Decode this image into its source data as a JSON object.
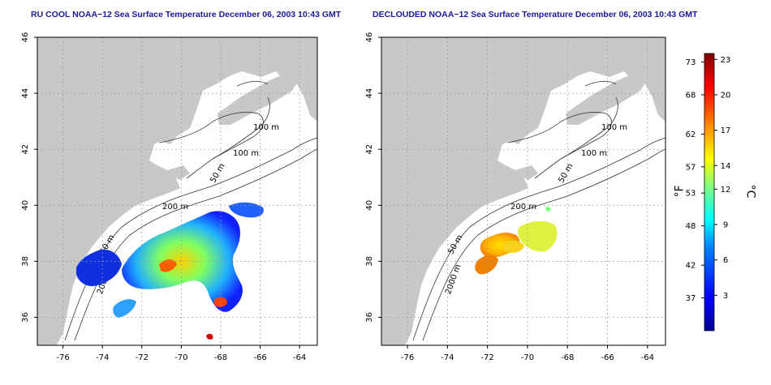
{
  "titles": {
    "left": "RU COOL NOAA−12 Sea Surface Temperature December 06, 2003 10:43 GMT",
    "right": "DECLOUDED NOAA−12 Sea Surface Temperature December 06, 2003 10:43 GMT"
  },
  "map_axes": {
    "lon_ticks": [
      "-76",
      "-74",
      "-72",
      "-70",
      "-68",
      "-66",
      "-64"
    ],
    "lat_ticks": [
      "36",
      "38",
      "40",
      "42",
      "44",
      "46"
    ],
    "lon_range": [
      -77.3,
      -63.1
    ],
    "lat_range": [
      35.0,
      46.0
    ]
  },
  "contours_left": [
    "100 m",
    "100 m",
    "50 m",
    "200 m",
    "50 m",
    "200 m"
  ],
  "contours_right": [
    "100 m",
    "100 m",
    "50 m",
    "200 m",
    "50 m",
    "2000 m"
  ],
  "colorbar": {
    "fahrenheit_ticks": [
      "73",
      "68",
      "62",
      "57",
      "53",
      "48",
      "42",
      "37"
    ],
    "celsius_ticks": [
      "23",
      "20",
      "17",
      "14",
      "12",
      "9",
      "6",
      "3"
    ],
    "fahrenheit_unit": "°F",
    "celsius_unit": "°C",
    "range_c": [
      0,
      23.5
    ],
    "colors": [
      "#00008f",
      "#0000ff",
      "#0080ff",
      "#00ffff",
      "#80ff80",
      "#ffff00",
      "#ff8000",
      "#ff0000",
      "#800000"
    ]
  },
  "colors": {
    "land": "#c8c8c8",
    "sea": "#ffffff",
    "title_text": "#1a1a9a",
    "grid": "#999999"
  }
}
